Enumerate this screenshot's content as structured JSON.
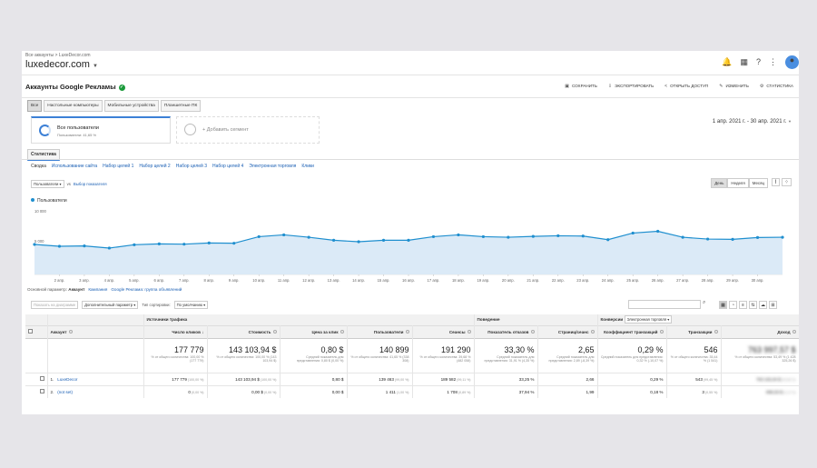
{
  "topbar": {
    "breadcrumb": "Все аккаунты > LuxeDecor.com",
    "property": "luxedecor.com"
  },
  "report": {
    "title": "Аккаунты Google Рекламы",
    "actions": [
      "СОХРАНИТЬ",
      "ЭКСПОРТИРОВАТЬ",
      "ОТКРЫТЬ ДОСТУП",
      "ИЗМЕНИТЬ",
      "СТАТИСТИКА"
    ]
  },
  "device_tabs": [
    "Все",
    "Настольные компьютеры",
    "Мобильные устройства",
    "Планшетные ПК"
  ],
  "segment": {
    "name": "Все пользователи",
    "sub": "Пользователи: 41,65 %",
    "add": "+ Добавить сегмент"
  },
  "date_range": "1 апр. 2021 г. - 30 апр. 2021 г.",
  "stats_tab": "Статистика",
  "sub_tabs": [
    "Сводка",
    "Использование сайта",
    "Набор целей 1",
    "Набор целей 2",
    "Набор целей 3",
    "Набор целей 4",
    "Электронная торговля",
    "Клики"
  ],
  "controls": {
    "metric": "Пользователи",
    "vs": "vs",
    "choose": "Выбор показателя",
    "granularity": [
      "День",
      "Неделя",
      "Месяц"
    ]
  },
  "legend": "Пользователи",
  "accent": "#1f8fcf",
  "chart_data": {
    "type": "area",
    "series": [
      {
        "name": "Пользователи",
        "values": [
          5000,
          4700,
          4750,
          4400,
          4950,
          5100,
          5050,
          5250,
          5200,
          6300,
          6600,
          6200,
          5700,
          5450,
          5700,
          5700,
          6300,
          6600,
          6300,
          6200,
          6350,
          6450,
          6400,
          5800,
          6900,
          7200,
          6200,
          5900,
          5850,
          6150,
          6200
        ]
      }
    ],
    "x_ticks": [
      "2 апр.",
      "3 апр.",
      "4 апр.",
      "5 апр.",
      "6 апр.",
      "7 апр.",
      "8 апр.",
      "9 апр.",
      "10 апр.",
      "11 апр.",
      "12 апр.",
      "13 апр.",
      "14 апр.",
      "15 апр.",
      "16 апр.",
      "17 апр.",
      "18 апр.",
      "19 апр.",
      "20 апр.",
      "21 апр.",
      "22 апр.",
      "23 апр.",
      "24 апр.",
      "25 апр.",
      "26 апр.",
      "27 апр.",
      "28 апр.",
      "29 апр.",
      "30 апр."
    ],
    "y_ticks": [
      "10 000",
      "5 000"
    ],
    "ylim": [
      0,
      10000
    ],
    "grid": false
  },
  "table_tools": {
    "base_label": "Основной параметр:",
    "base_value": "Аккаунт",
    "base_links": [
      "Кампания",
      "Google Реклама: группа объявлений"
    ],
    "grid_btn": "Показать на диаграмме",
    "extra_param": "Дополнительный параметр",
    "sort_label": "Тип сортировки:",
    "sort_value": "По умолчанию"
  },
  "table": {
    "groups": [
      "Источники трафика",
      "Поведение",
      "Конверсии",
      "Электронная торговля"
    ],
    "dim_header": "Аккаунт",
    "headers": [
      "Число кликов",
      "Стоимость",
      "Цена за клик",
      "Пользователи",
      "Сеансы",
      "Показатель отказов",
      "Страниц/сеанс",
      "Коэффициент транзакций",
      "Транзакции",
      "Доход"
    ],
    "totals": [
      {
        "v": "177 779",
        "s": "% от общего количества: 100,00 % (177 779)"
      },
      {
        "v": "143 103,94 $",
        "s": "% от общего количества: 100,00 % (143 103,94 $)"
      },
      {
        "v": "0,80 $",
        "s": "Средний показатель для представления: 0,80 $ (0,00 %)"
      },
      {
        "v": "140 899",
        "s": "% от общего количества: 41,65 % (338 308)"
      },
      {
        "v": "191 290",
        "s": "% от общего количества: 39,68 % (482 058)"
      },
      {
        "v": "33,30 %",
        "s": "Средний показатель для представления: 31,91 % (4,35 %)"
      },
      {
        "v": "2,65",
        "s": "Средний показатель для представления: 2,89 (-8,39 %)"
      },
      {
        "v": "0,29 %",
        "s": "Средний показатель для представления: 0,32 % (-10,07 %)"
      },
      {
        "v": "546",
        "s": "% от общего количества: 35,44 % (1 541)"
      },
      {
        "v": "763 997,57 $",
        "s": "% от общего количества: 53,49 % (1 428 325,26 $)"
      }
    ],
    "rows": [
      {
        "idx": "1.",
        "name": "LuxeDecor",
        "cells": [
          [
            "177 779",
            "(100,00 %)"
          ],
          [
            "143 103,94 $",
            "(100,00 %)"
          ],
          [
            "0,80 $",
            ""
          ],
          [
            "139 463",
            "(99,00 %)"
          ],
          [
            "189 582",
            "(99,11 %)"
          ],
          [
            "33,25 %",
            ""
          ],
          [
            "2,66",
            ""
          ],
          [
            "0,29 %",
            ""
          ],
          [
            "543",
            "(99,45 %)"
          ],
          [
            "763 102,04 $",
            "(99,88 %)"
          ]
        ]
      },
      {
        "idx": "2.",
        "name": "(not set)",
        "cells": [
          [
            "0",
            "(0,00 %)"
          ],
          [
            "0,00 $",
            "(0,00 %)"
          ],
          [
            "0,00 $",
            ""
          ],
          [
            "1 411",
            "(1,00 %)"
          ],
          [
            "1 708",
            "(0,89 %)"
          ],
          [
            "37,94 %",
            ""
          ],
          [
            "1,99",
            ""
          ],
          [
            "0,18 %",
            ""
          ],
          [
            "3",
            "(0,55 %)"
          ],
          [
            "895,53 $",
            "(0,12 %)"
          ]
        ]
      }
    ]
  }
}
